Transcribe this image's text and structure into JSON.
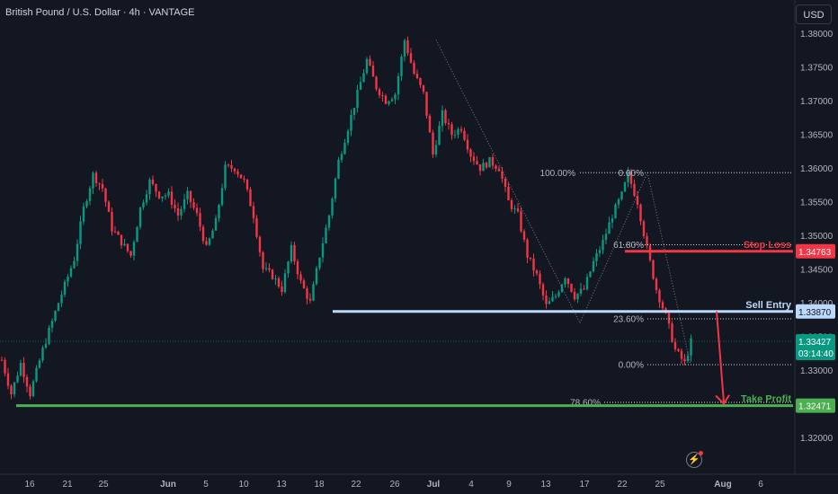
{
  "header": {
    "title": "British Pound / U.S. Dollar · 4h · VANTAGE",
    "currency_button": "USD"
  },
  "chart_data": {
    "type": "candlestick",
    "title": "British Pound / U.S. Dollar · 4h · VANTAGE",
    "y_ticks": [
      "1.38000",
      "1.37500",
      "1.37000",
      "1.36500",
      "1.36000",
      "1.35500",
      "1.35000",
      "1.34500",
      "1.34000",
      "1.33500",
      "1.33000",
      "1.32500",
      "1.32000"
    ],
    "ylim": [
      1.3165,
      1.3815
    ],
    "x_ticks": [
      {
        "label": "16",
        "bold": false
      },
      {
        "label": "21",
        "bold": false
      },
      {
        "label": "25",
        "bold": false
      },
      {
        "label": "Jun",
        "bold": true
      },
      {
        "label": "5",
        "bold": false
      },
      {
        "label": "10",
        "bold": false
      },
      {
        "label": "13",
        "bold": false
      },
      {
        "label": "18",
        "bold": false
      },
      {
        "label": "22",
        "bold": false
      },
      {
        "label": "26",
        "bold": false
      },
      {
        "label": "Jul",
        "bold": true
      },
      {
        "label": "4",
        "bold": false
      },
      {
        "label": "9",
        "bold": false
      },
      {
        "label": "13",
        "bold": false
      },
      {
        "label": "17",
        "bold": false
      },
      {
        "label": "22",
        "bold": false
      },
      {
        "label": "25",
        "bold": false
      },
      {
        "label": "Aug",
        "bold": true
      },
      {
        "label": "6",
        "bold": false
      }
    ],
    "price_path": [
      [
        0,
        1.3315
      ],
      [
        3,
        1.3265
      ],
      [
        6,
        1.331
      ],
      [
        9,
        1.3265
      ],
      [
        13,
        1.333
      ],
      [
        18,
        1.34
      ],
      [
        23,
        1.3465
      ],
      [
        26,
        1.354
      ],
      [
        29,
        1.359
      ],
      [
        32,
        1.357
      ],
      [
        35,
        1.351
      ],
      [
        38,
        1.349
      ],
      [
        41,
        1.347
      ],
      [
        44,
        1.354
      ],
      [
        47,
        1.358
      ],
      [
        50,
        1.356
      ],
      [
        53,
        1.356
      ],
      [
        56,
        1.353
      ],
      [
        59,
        1.356
      ],
      [
        62,
        1.353
      ],
      [
        65,
        1.348
      ],
      [
        68,
        1.352
      ],
      [
        71,
        1.36
      ],
      [
        74,
        1.36
      ],
      [
        77,
        1.358
      ],
      [
        80,
        1.353
      ],
      [
        83,
        1.345
      ],
      [
        86,
        1.344
      ],
      [
        89,
        1.342
      ],
      [
        92,
        1.348
      ],
      [
        95,
        1.343
      ],
      [
        98,
        1.34
      ],
      [
        101,
        1.347
      ],
      [
        104,
        1.353
      ],
      [
        107,
        1.361
      ],
      [
        110,
        1.366
      ],
      [
        113,
        1.371
      ],
      [
        116,
        1.376
      ],
      [
        119,
        1.372
      ],
      [
        122,
        1.37
      ],
      [
        125,
        1.371
      ],
      [
        128,
        1.379
      ],
      [
        131,
        1.374
      ],
      [
        134,
        1.371
      ],
      [
        137,
        1.362
      ],
      [
        140,
        1.368
      ],
      [
        143,
        1.365
      ],
      [
        146,
        1.366
      ],
      [
        149,
        1.362
      ],
      [
        152,
        1.36
      ],
      [
        155,
        1.361
      ],
      [
        158,
        1.36
      ],
      [
        161,
        1.355
      ],
      [
        164,
        1.353
      ],
      [
        167,
        1.347
      ],
      [
        170,
        1.344
      ],
      [
        173,
        1.3395
      ],
      [
        176,
        1.341
      ],
      [
        179,
        1.344
      ],
      [
        182,
        1.341
      ],
      [
        185,
        1.342
      ],
      [
        188,
        1.346
      ],
      [
        191,
        1.349
      ],
      [
        194,
        1.353
      ],
      [
        197,
        1.356
      ],
      [
        199,
        1.359
      ],
      [
        202,
        1.355
      ],
      [
        205,
        1.348
      ],
      [
        208,
        1.342
      ],
      [
        211,
        1.338
      ],
      [
        214,
        1.333
      ],
      [
        217,
        1.331
      ],
      [
        219,
        1.3342
      ]
    ],
    "levels": [
      {
        "name": "Stop Loss",
        "price": 1.34763,
        "label": "1.34763",
        "color": "#f23645"
      },
      {
        "name": "Sell Entry",
        "price": 1.3387,
        "label": "1.33870",
        "color": "#bbd9fb"
      },
      {
        "name": "Take Profit",
        "price": 1.32471,
        "label": "1.32471",
        "color": "#4caf50"
      }
    ],
    "current_price": {
      "label": "1.33427",
      "countdown": "03:14:40",
      "price": 1.33427,
      "color": "#089981"
    },
    "fib_labels": [
      {
        "text": "100.00%",
        "price": 1.3593
      },
      {
        "text": "0.00%",
        "price": 1.3593
      },
      {
        "text": "61.80%",
        "price": 1.3486
      },
      {
        "text": "23.60%",
        "price": 1.3376
      },
      {
        "text": "0.00%",
        "price": 1.3308
      },
      {
        "text": "78.60%",
        "price": 1.3252
      }
    ],
    "colors": {
      "up": "#089981",
      "down": "#f23645",
      "background": "#131722",
      "text": "#d1d4dc"
    }
  }
}
